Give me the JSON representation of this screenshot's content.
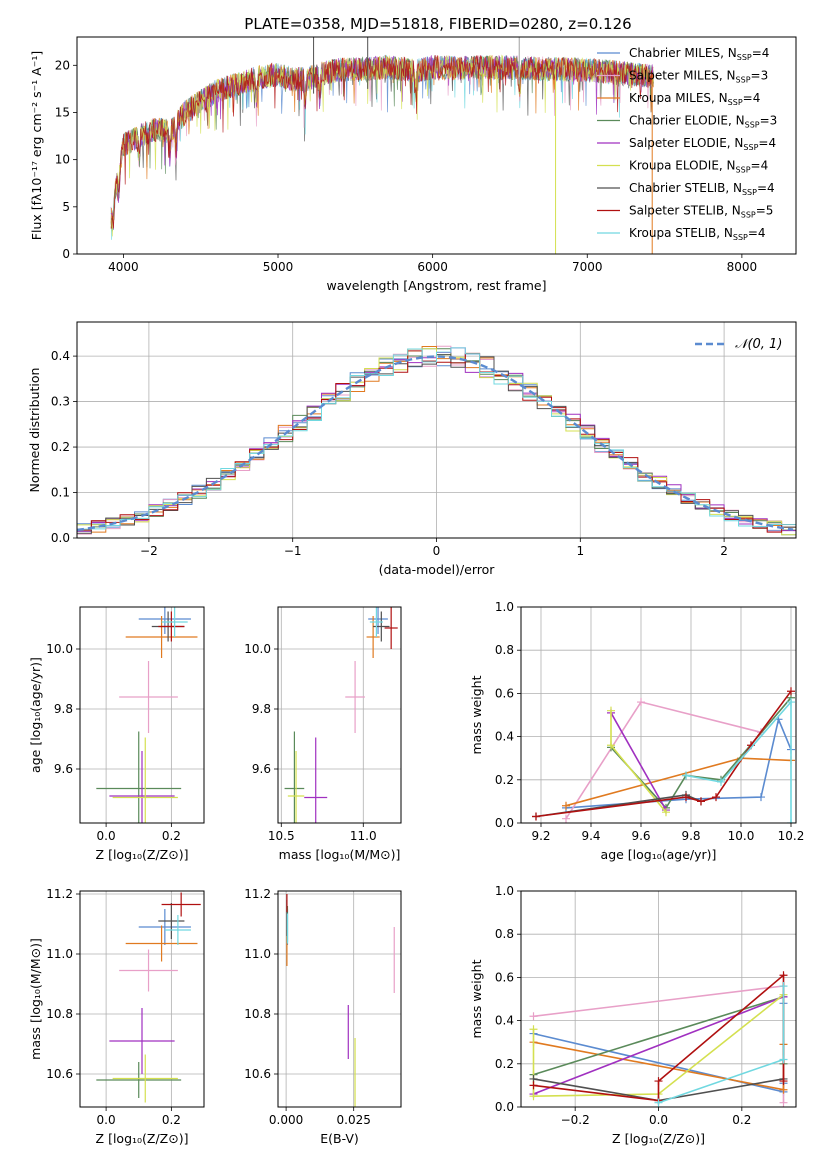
{
  "figure": {
    "title": "PLATE=0358, MJD=51818, FIBERID=0280, z=0.126"
  },
  "legend_models": [
    {
      "label": "Chabrier MILES, N",
      "sub": "SSP",
      "tail": "=4",
      "color": "#5b8bd0"
    },
    {
      "label": "Salpeter MILES, N",
      "sub": "SSP",
      "tail": "=3",
      "color": "#e8a0c8"
    },
    {
      "label": "Kroupa MILES, N",
      "sub": "SSP",
      "tail": "=4",
      "color": "#e07a20"
    },
    {
      "label": "Chabrier ELODIE, N",
      "sub": "SSP",
      "tail": "=3",
      "color": "#5a8a5a"
    },
    {
      "label": "Salpeter ELODIE, N",
      "sub": "SSP",
      "tail": "=4",
      "color": "#a030c0"
    },
    {
      "label": "Kroupa ELODIE, N",
      "sub": "SSP",
      "tail": "=4",
      "color": "#d4e050"
    },
    {
      "label": "Chabrier STELIB, N",
      "sub": "SSP",
      "tail": "=4",
      "color": "#505050"
    },
    {
      "label": "Salpeter STELIB, N",
      "sub": "SSP",
      "tail": "=5",
      "color": "#b01010"
    },
    {
      "label": "Kroupa STELIB, N",
      "sub": "SSP",
      "tail": "=4",
      "color": "#70d8e0"
    }
  ],
  "chart_data": [
    {
      "id": "spectrum",
      "type": "line",
      "xlabel": "wavelength [Angstrom, rest frame]",
      "ylabel": "Flux [fλ10⁻¹⁷ erg cm⁻² s⁻¹ A⁻¹]",
      "xlim": [
        3700,
        8350
      ],
      "ylim": [
        0,
        23
      ],
      "xticks": [
        4000,
        5000,
        6000,
        7000,
        8000
      ],
      "yticks": [
        0,
        5,
        10,
        15,
        20
      ],
      "continuum": [
        [
          3920,
          4.0
        ],
        [
          3960,
          8.0
        ],
        [
          4000,
          11.5
        ],
        [
          4100,
          12.5
        ],
        [
          4200,
          13.2
        ],
        [
          4300,
          13.0
        ],
        [
          4400,
          15.0
        ],
        [
          4500,
          16.2
        ],
        [
          4600,
          17.2
        ],
        [
          4700,
          17.8
        ],
        [
          4800,
          18.3
        ],
        [
          4900,
          18.8
        ],
        [
          5000,
          19.0
        ],
        [
          5100,
          18.5
        ],
        [
          5200,
          18.6
        ],
        [
          5300,
          19.2
        ],
        [
          5400,
          19.5
        ],
        [
          5500,
          19.6
        ],
        [
          5600,
          19.7
        ],
        [
          5700,
          19.8
        ],
        [
          5800,
          19.6
        ],
        [
          5900,
          19.4
        ],
        [
          6000,
          19.8
        ],
        [
          6200,
          19.7
        ],
        [
          6400,
          19.8
        ],
        [
          6600,
          19.7
        ],
        [
          6800,
          19.6
        ],
        [
          7000,
          19.5
        ],
        [
          7200,
          19.2
        ],
        [
          7430,
          18.8
        ]
      ],
      "spikes": [
        {
          "x": 6795,
          "ymin": 0,
          "ymax": 19.6,
          "color": "#d4e050"
        },
        {
          "x": 7420,
          "ymin": 0,
          "ymax": 19.0,
          "color": "#e07a20"
        },
        {
          "x": 5230,
          "ymin": 17.0,
          "ymax": 23.0,
          "color": "#505050"
        },
        {
          "x": 5580,
          "ymin": 17.5,
          "ymax": 23.0,
          "color": "#505050"
        },
        {
          "x": 6560,
          "ymin": 18.0,
          "ymax": 23.0,
          "color": "#a0a0a0"
        }
      ]
    },
    {
      "id": "residual-histogram",
      "type": "line",
      "xlabel": "(data-model)/error",
      "ylabel": "Normed distribution",
      "xlim": [
        -2.5,
        2.5
      ],
      "ylim": [
        0,
        0.475
      ],
      "xticks": [
        -2,
        -1,
        0,
        1,
        2
      ],
      "yticks": [
        0.0,
        0.1,
        0.2,
        0.3,
        0.4
      ],
      "grid": true,
      "bin_width": 0.1,
      "reference": {
        "name": "𝒩(0, 1)",
        "mean": 0,
        "sigma": 1,
        "color": "#5b8bd0"
      }
    },
    {
      "id": "age-vs-Z",
      "type": "scatter",
      "xlabel": "Z [log₁₀(Z/Z⊙)]",
      "ylabel": "age  [log₁₀(age/yr)]",
      "xlim": [
        -0.08,
        0.3
      ],
      "ylim": [
        9.42,
        10.14
      ],
      "xticks": [
        0.0,
        0.2
      ],
      "yticks": [
        9.6,
        9.8,
        10.0
      ],
      "grid": true,
      "points": [
        {
          "x": 0.18,
          "y": 10.1,
          "xerr": 0.08,
          "yerr": 0.05,
          "color": "#5b8bd0"
        },
        {
          "x": 0.13,
          "y": 9.84,
          "xerr": 0.09,
          "yerr": 0.12,
          "color": "#e8a0c8"
        },
        {
          "x": 0.17,
          "y": 10.04,
          "xerr": 0.11,
          "yerr": 0.07,
          "color": "#e07a20"
        },
        {
          "x": 0.1,
          "y": 9.535,
          "xerr": 0.13,
          "yerr": 0.19,
          "color": "#5a8a5a"
        },
        {
          "x": 0.11,
          "y": 9.51,
          "xerr": 0.1,
          "yerr": 0.15,
          "color": "#a030c0"
        },
        {
          "x": 0.12,
          "y": 9.505,
          "xerr": 0.1,
          "yerr": 0.2,
          "color": "#d4e050"
        },
        {
          "x": 0.19,
          "y": 10.075,
          "xerr": 0.05,
          "yerr": 0.05,
          "color": "#505050"
        },
        {
          "x": 0.2,
          "y": 10.075,
          "xerr": 0.04,
          "yerr": 0.05,
          "color": "#b01010"
        },
        {
          "x": 0.21,
          "y": 10.09,
          "xerr": 0.04,
          "yerr": 0.05,
          "color": "#70d8e0"
        }
      ]
    },
    {
      "id": "age-vs-mass",
      "type": "scatter",
      "xlabel": "mass [log₁₀(M/M⊙)]",
      "ylabel": "",
      "xlim": [
        10.48,
        11.23
      ],
      "ylim": [
        9.42,
        10.14
      ],
      "xticks": [
        10.5,
        11.0
      ],
      "yticks": [
        9.6,
        9.8,
        10.0
      ],
      "grid": true,
      "points": [
        {
          "x": 11.09,
          "y": 10.1,
          "xerr": 0.06,
          "yerr": 0.05,
          "color": "#5b8bd0"
        },
        {
          "x": 10.95,
          "y": 9.84,
          "xerr": 0.06,
          "yerr": 0.12,
          "color": "#e8a0c8"
        },
        {
          "x": 11.06,
          "y": 10.04,
          "xerr": 0.04,
          "yerr": 0.07,
          "color": "#e07a20"
        },
        {
          "x": 10.58,
          "y": 9.535,
          "xerr": 0.06,
          "yerr": 0.19,
          "color": "#5a8a5a"
        },
        {
          "x": 10.71,
          "y": 9.505,
          "xerr": 0.07,
          "yerr": 0.2,
          "color": "#a030c0"
        },
        {
          "x": 10.59,
          "y": 9.51,
          "xerr": 0.05,
          "yerr": 0.15,
          "color": "#d4e050"
        },
        {
          "x": 11.11,
          "y": 10.075,
          "xerr": 0.05,
          "yerr": 0.05,
          "color": "#505050"
        },
        {
          "x": 11.17,
          "y": 10.07,
          "xerr": 0.04,
          "yerr": 0.07,
          "color": "#b01010"
        },
        {
          "x": 11.08,
          "y": 10.09,
          "xerr": 0.04,
          "yerr": 0.05,
          "color": "#70d8e0"
        }
      ]
    },
    {
      "id": "weight-vs-age",
      "type": "line",
      "xlabel": "age  [log₁₀(age/yr)]",
      "ylabel": "mass weight",
      "xlim": [
        9.12,
        10.22
      ],
      "ylim": [
        0,
        1.0
      ],
      "xticks": [
        9.2,
        9.4,
        9.6,
        9.8,
        10.0,
        10.2
      ],
      "yticks": [
        0.0,
        0.2,
        0.4,
        0.6,
        0.8,
        1.0
      ],
      "grid": true,
      "series": [
        {
          "color": "#5b8bd0",
          "points": [
            [
              9.3,
              0.07
            ],
            [
              9.78,
              0.11
            ],
            [
              10.08,
              0.12
            ],
            [
              10.15,
              0.48
            ],
            [
              10.2,
              0.34
            ]
          ]
        },
        {
          "color": "#e8a0c8",
          "points": [
            [
              9.3,
              0.02
            ],
            [
              9.6,
              0.56
            ],
            [
              10.08,
              0.42
            ]
          ]
        },
        {
          "color": "#e07a20",
          "points": [
            [
              9.3,
              0.08
            ],
            [
              10.0,
              0.3
            ],
            [
              10.2,
              0.29
            ]
          ]
        },
        {
          "color": "#5a8a5a",
          "points": [
            [
              9.48,
              0.35
            ],
            [
              9.7,
              0.07
            ],
            [
              9.78,
              0.22
            ],
            [
              9.92,
              0.2
            ],
            [
              10.2,
              0.58
            ]
          ]
        },
        {
          "color": "#a030c0",
          "points": [
            [
              9.48,
              0.51
            ],
            [
              9.7,
              0.06
            ]
          ]
        },
        {
          "color": "#d4e050",
          "points": [
            [
              9.48,
              0.52
            ],
            [
              9.48,
              0.36
            ],
            [
              9.7,
              0.05
            ]
          ]
        },
        {
          "color": "#505050",
          "points": [
            [
              9.18,
              0.03
            ],
            [
              9.78,
              0.13
            ],
            [
              9.84,
              0.1
            ]
          ]
        },
        {
          "color": "#b01010",
          "points": [
            [
              9.18,
              0.03
            ],
            [
              9.78,
              0.12
            ],
            [
              9.84,
              0.1
            ],
            [
              9.9,
              0.12
            ],
            [
              10.04,
              0.36
            ],
            [
              10.2,
              0.61
            ]
          ]
        },
        {
          "color": "#70d8e0",
          "points": [
            [
              9.78,
              0.22
            ],
            [
              9.92,
              0.19
            ],
            [
              10.2,
              0.56
            ],
            [
              10.2,
              0.0
            ]
          ]
        }
      ]
    },
    {
      "id": "mass-vs-Z",
      "type": "scatter",
      "xlabel": "Z [log₁₀(Z/Z⊙)]",
      "ylabel": "mass [log₁₀(M/M⊙)]",
      "xlim": [
        -0.08,
        0.3
      ],
      "ylim": [
        10.49,
        11.21
      ],
      "xticks": [
        0.0,
        0.2
      ],
      "yticks": [
        10.6,
        10.8,
        11.0,
        11.2
      ],
      "grid": true,
      "points": [
        {
          "x": 0.18,
          "y": 11.09,
          "xerr": 0.08,
          "yerr": 0.06,
          "color": "#5b8bd0"
        },
        {
          "x": 0.13,
          "y": 10.945,
          "xerr": 0.09,
          "yerr": 0.07,
          "color": "#e8a0c8"
        },
        {
          "x": 0.17,
          "y": 11.035,
          "xerr": 0.11,
          "yerr": 0.06,
          "color": "#e07a20"
        },
        {
          "x": 0.1,
          "y": 10.58,
          "xerr": 0.13,
          "yerr": 0.06,
          "color": "#5a8a5a"
        },
        {
          "x": 0.11,
          "y": 10.71,
          "xerr": 0.1,
          "yerr": 0.11,
          "color": "#a030c0"
        },
        {
          "x": 0.12,
          "y": 10.585,
          "xerr": 0.1,
          "yerr": 0.08,
          "color": "#d4e050"
        },
        {
          "x": 0.2,
          "y": 11.11,
          "xerr": 0.04,
          "yerr": 0.06,
          "color": "#505050"
        },
        {
          "x": 0.23,
          "y": 11.165,
          "xerr": 0.06,
          "yerr": 0.04,
          "color": "#b01010"
        },
        {
          "x": 0.22,
          "y": 11.08,
          "xerr": 0.04,
          "yerr": 0.05,
          "color": "#70d8e0"
        }
      ]
    },
    {
      "id": "mass-vs-EBV",
      "type": "scatter",
      "xlabel": "E(B-V)",
      "ylabel": "",
      "xlim": [
        -0.003,
        0.0425
      ],
      "ylim": [
        10.49,
        11.21
      ],
      "xticks": [
        0.0,
        0.025
      ],
      "yticks": [
        10.6,
        10.8,
        11.0,
        11.2
      ],
      "grid": true,
      "points": [
        {
          "x": 0.0005,
          "y": 11.09,
          "yerr": 0.06,
          "color": "#5b8bd0"
        },
        {
          "x": 0.04,
          "y": 10.98,
          "yerr": 0.11,
          "color": "#e8a0c8"
        },
        {
          "x": 0.0003,
          "y": 11.02,
          "yerr": 0.06,
          "color": "#e07a20"
        },
        {
          "x": 0.0005,
          "y": 11.1,
          "yerr": 0.06,
          "color": "#5a8a5a"
        },
        {
          "x": 0.023,
          "y": 10.74,
          "yerr": 0.09,
          "color": "#a030c0"
        },
        {
          "x": 0.0255,
          "y": 10.6,
          "yerr": 0.12,
          "color": "#d4e050"
        },
        {
          "x": 0.0003,
          "y": 11.12,
          "yerr": 0.06,
          "color": "#505050"
        },
        {
          "x": 0.0003,
          "y": 11.17,
          "yerr": 0.03,
          "color": "#b01010"
        },
        {
          "x": 0.0005,
          "y": 11.085,
          "yerr": 0.05,
          "color": "#70d8e0"
        }
      ]
    },
    {
      "id": "weight-vs-Z",
      "type": "line",
      "xlabel": "Z [log₁₀(Z/Z⊙)]",
      "ylabel": "mass weight",
      "xlim": [
        -0.33,
        0.33
      ],
      "ylim": [
        0,
        1.0
      ],
      "xticks": [
        -0.2,
        0.0,
        0.2
      ],
      "yticks": [
        0.0,
        0.2,
        0.4,
        0.6,
        0.8,
        1.0
      ],
      "grid": true,
      "series": [
        {
          "color": "#5b8bd0",
          "points": [
            [
              -0.3,
              0.34
            ],
            [
              0.3,
              0.07
            ],
            [
              0.3,
              0.48
            ],
            [
              0.3,
              0.11
            ]
          ]
        },
        {
          "color": "#e8a0c8",
          "points": [
            [
              -0.3,
              0.42
            ],
            [
              0.3,
              0.56
            ],
            [
              0.3,
              0.02
            ]
          ]
        },
        {
          "color": "#e07a20",
          "points": [
            [
              -0.3,
              0.3
            ],
            [
              0.3,
              0.08
            ],
            [
              0.3,
              0.29
            ]
          ]
        },
        {
          "color": "#5a8a5a",
          "points": [
            [
              -0.3,
              0.15
            ],
            [
              0.3,
              0.51
            ],
            [
              0.3,
              0.2
            ]
          ]
        },
        {
          "color": "#a030c0",
          "points": [
            [
              -0.3,
              0.06
            ],
            [
              0.3,
              0.51
            ]
          ]
        },
        {
          "color": "#d4e050",
          "points": [
            [
              -0.3,
              0.36
            ],
            [
              -0.3,
              0.05
            ],
            [
              0.0,
              0.06
            ],
            [
              0.3,
              0.52
            ]
          ]
        },
        {
          "color": "#505050",
          "points": [
            [
              -0.3,
              0.13
            ],
            [
              0.0,
              0.03
            ],
            [
              0.3,
              0.13
            ]
          ]
        },
        {
          "color": "#b01010",
          "points": [
            [
              -0.3,
              0.1
            ],
            [
              0.0,
              0.03
            ],
            [
              0.0,
              0.12
            ],
            [
              0.3,
              0.61
            ],
            [
              0.3,
              0.12
            ]
          ]
        },
        {
          "color": "#70d8e0",
          "points": [
            [
              0.0,
              0.02
            ],
            [
              0.3,
              0.22
            ],
            [
              0.3,
              0.56
            ]
          ]
        }
      ]
    }
  ]
}
